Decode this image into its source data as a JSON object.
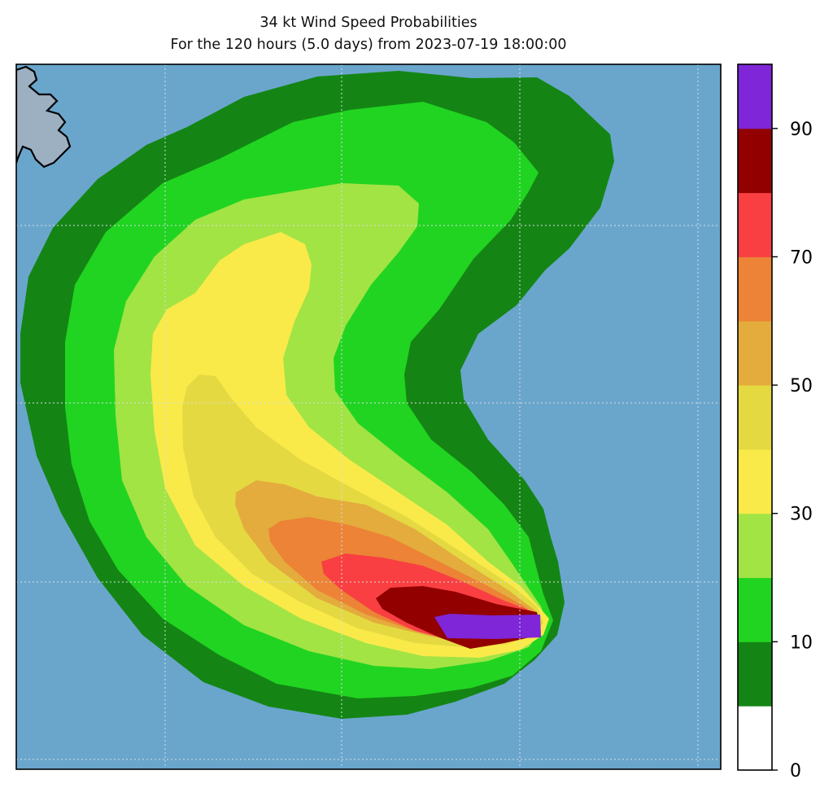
{
  "title": {
    "line1": "34 kt Wind Speed Probabilities",
    "line2": "For the 120 hours (5.0 days) from 2023-07-19 18:00:00"
  },
  "colors": {
    "ocean": "#6aa6cc",
    "land": "#9db0c2",
    "coastline": "#000000",
    "gridline": "#d8dde2"
  },
  "colorbar": {
    "ticks": [
      "0",
      "10",
      "30",
      "50",
      "70",
      "90"
    ],
    "bands": [
      {
        "from": 0,
        "to": 5,
        "color": "#ffffff"
      },
      {
        "from": 5,
        "to": 10,
        "color": "#148514"
      },
      {
        "from": 10,
        "to": 20,
        "color": "#21d421"
      },
      {
        "from": 20,
        "to": 30,
        "color": "#a2e444"
      },
      {
        "from": 30,
        "to": 40,
        "color": "#f9ea4a"
      },
      {
        "from": 40,
        "to": 50,
        "color": "#e5d942"
      },
      {
        "from": 50,
        "to": 60,
        "color": "#e4ac3c"
      },
      {
        "from": 60,
        "to": 70,
        "color": "#ec8336"
      },
      {
        "from": 70,
        "to": 80,
        "color": "#f93f42"
      },
      {
        "from": 80,
        "to": 90,
        "color": "#920000"
      },
      {
        "from": 90,
        "to": 100,
        "color": "#7f26d8"
      }
    ]
  }
}
